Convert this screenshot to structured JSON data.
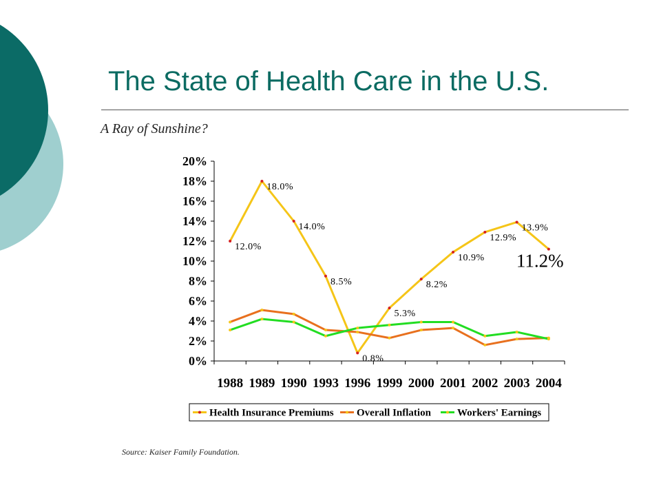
{
  "slide": {
    "title": "The State of Health Care in the U.S.",
    "subtitle": "A Ray of Sunshine?",
    "source": "Source: Kaiser Family Foundation."
  },
  "colors": {
    "title": "#0b6b62",
    "deco_dark": "#0b6b66",
    "deco_light": "#9fcfcf"
  },
  "chart_data": {
    "type": "line",
    "categories": [
      "1988",
      "1989",
      "1990",
      "1993",
      "1996",
      "1999",
      "2000",
      "2001",
      "2002",
      "2003",
      "2004"
    ],
    "ylim": [
      0,
      20
    ],
    "yticks": [
      0,
      2,
      4,
      6,
      8,
      10,
      12,
      14,
      16,
      18,
      20
    ],
    "ytick_labels": [
      "0%",
      "2%",
      "4%",
      "6%",
      "8%",
      "10%",
      "12%",
      "14%",
      "16%",
      "18%",
      "20%"
    ],
    "legend_position": "bottom",
    "grid": false,
    "series": [
      {
        "name": "Health Insurance Premiums",
        "color": "#f5c518",
        "marker_color": "#d62020",
        "values": [
          12.0,
          18.0,
          14.0,
          8.5,
          0.8,
          5.3,
          8.2,
          10.9,
          12.9,
          13.9,
          11.2
        ],
        "labels": [
          "12.0%",
          "18.0%",
          "14.0%",
          "8.5%",
          "0.8%",
          "5.3%",
          "8.2%",
          "10.9%",
          "12.9%",
          "13.9%",
          "11.2%"
        ]
      },
      {
        "name": "Overall Inflation",
        "color": "#e8701e",
        "marker_color": "#f5c518",
        "values": [
          3.9,
          5.1,
          4.7,
          3.1,
          2.9,
          2.3,
          3.1,
          3.3,
          1.6,
          2.2,
          2.3
        ]
      },
      {
        "name": "Workers' Earnings",
        "color": "#22dd22",
        "marker_color": "#f5c518",
        "values": [
          3.1,
          4.2,
          3.9,
          2.5,
          3.3,
          3.6,
          3.9,
          3.9,
          2.5,
          2.9,
          2.2
        ]
      }
    ]
  }
}
